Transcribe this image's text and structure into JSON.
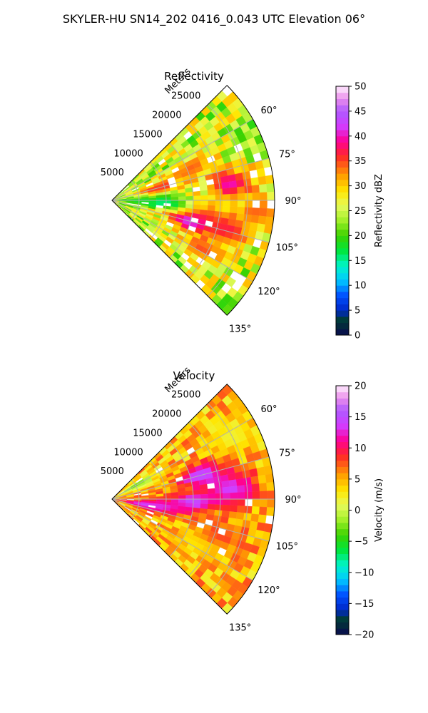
{
  "figure_title": "SKYLER-HU  SN14_202  0416_0.043 UTC Elevation 06°",
  "chart_data": [
    {
      "type": "heatmap",
      "title": "Reflectivity",
      "radial_axis_label": "Meters",
      "range_ticks": [
        5000,
        10000,
        15000,
        20000,
        25000
      ],
      "azimuth_ticks": [
        "60°",
        "75°",
        "90°",
        "105°",
        "120°",
        "135°"
      ],
      "azimuth_range_deg": [
        45,
        135
      ],
      "max_range_m": 30000,
      "grid": true,
      "colorbar": {
        "label": "Reflectivity dBZ",
        "range": [
          0,
          50
        ],
        "ticks": [
          "0",
          "5",
          "10",
          "15",
          "20",
          "25",
          "30",
          "35",
          "40",
          "45",
          "50"
        ]
      },
      "blobs": [
        {
          "range_m": 9000,
          "az_deg": 75,
          "value": 36
        },
        {
          "range_m": 16000,
          "az_deg": 68,
          "value": 34
        },
        {
          "range_m": 22000,
          "az_deg": 82,
          "value": 40
        },
        {
          "range_m": 18000,
          "az_deg": 98,
          "value": 32
        },
        {
          "range_m": 15000,
          "az_deg": 105,
          "value": 43
        },
        {
          "range_m": 22000,
          "az_deg": 104,
          "value": 37
        },
        {
          "range_m": 19000,
          "az_deg": 118,
          "value": 35
        },
        {
          "range_m": 9000,
          "az_deg": 93,
          "value": 15
        },
        {
          "range_m": 4000,
          "az_deg": 90,
          "value": 18
        },
        {
          "range_m": 27000,
          "az_deg": 95,
          "value": 34
        }
      ]
    },
    {
      "type": "heatmap",
      "title": "Velocity",
      "radial_axis_label": "Meters",
      "range_ticks": [
        5000,
        10000,
        15000,
        20000,
        25000
      ],
      "azimuth_ticks": [
        "60°",
        "75°",
        "90°",
        "105°",
        "120°",
        "135°"
      ],
      "azimuth_range_deg": [
        45,
        135
      ],
      "max_range_m": 30000,
      "grid": true,
      "colorbar": {
        "label": "Velocity (m/s)",
        "range": [
          -20,
          20
        ],
        "ticks": [
          "−20",
          "−15",
          "−10",
          "−5",
          "0",
          "5",
          "10",
          "15",
          "20"
        ]
      },
      "blobs": [
        {
          "range_m": 17000,
          "az_deg": 75,
          "value": 15
        },
        {
          "range_m": 15000,
          "az_deg": 92,
          "value": 15
        },
        {
          "range_m": 22000,
          "az_deg": 85,
          "value": 14
        },
        {
          "range_m": 10000,
          "az_deg": 98,
          "value": 12
        },
        {
          "range_m": 25000,
          "az_deg": 62,
          "value": 2
        },
        {
          "range_m": 18000,
          "az_deg": 118,
          "value": 3
        },
        {
          "range_m": 5000,
          "az_deg": 60,
          "value": -3
        },
        {
          "range_m": 6000,
          "az_deg": 100,
          "value": 14
        },
        {
          "range_m": 21000,
          "az_deg": 108,
          "value": 8
        }
      ]
    }
  ]
}
